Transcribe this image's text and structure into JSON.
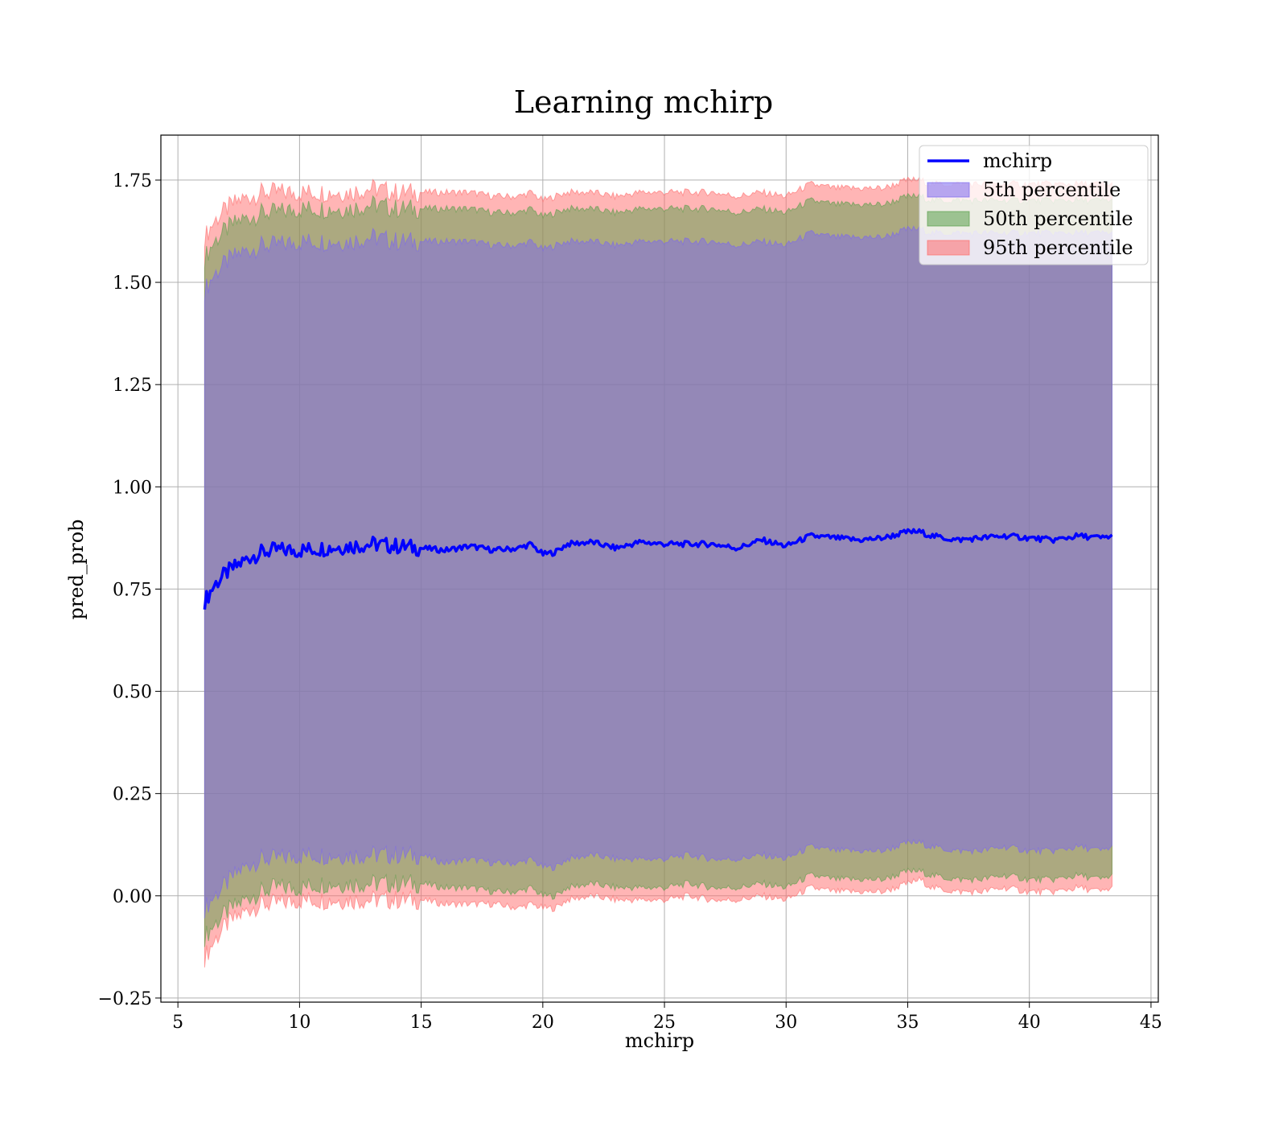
{
  "chart_data": {
    "type": "area",
    "title": "Learning mchirp",
    "xlabel": "mchirp",
    "ylabel": "pred_prob",
    "xlim": [
      4.3,
      45.3
    ],
    "ylim": [
      -0.26,
      1.86
    ],
    "xticks": [
      5,
      10,
      15,
      20,
      25,
      30,
      35,
      40,
      45
    ],
    "yticks": [
      -0.25,
      0.0,
      0.25,
      0.5,
      0.75,
      1.0,
      1.25,
      1.5,
      1.75
    ],
    "xtick_labels": [
      "5",
      "10",
      "15",
      "20",
      "25",
      "30",
      "35",
      "40",
      "45"
    ],
    "ytick_labels": [
      "−0.25",
      "0.00",
      "0.25",
      "0.50",
      "0.75",
      "1.00",
      "1.25",
      "1.50",
      "1.75"
    ],
    "grid": true,
    "legend_position": "top-right",
    "x": [
      6.1,
      6.5,
      7,
      7.5,
      8,
      8.5,
      9,
      10,
      11,
      12,
      13,
      14,
      15,
      16,
      17,
      18,
      19,
      19.5,
      20,
      20.5,
      21,
      22,
      23,
      24,
      25,
      26,
      27,
      28,
      29,
      30,
      31,
      32,
      33,
      34,
      35,
      35.5,
      36,
      37,
      38,
      39,
      40,
      41,
      42,
      43,
      43.4
    ],
    "series": [
      {
        "name": "mchirp",
        "kind": "line",
        "color": "#0000ff",
        "values": [
          0.72,
          0.76,
          0.79,
          0.81,
          0.83,
          0.84,
          0.845,
          0.845,
          0.85,
          0.855,
          0.86,
          0.855,
          0.85,
          0.845,
          0.855,
          0.845,
          0.85,
          0.86,
          0.835,
          0.84,
          0.86,
          0.865,
          0.85,
          0.865,
          0.86,
          0.86,
          0.86,
          0.85,
          0.87,
          0.855,
          0.88,
          0.875,
          0.87,
          0.875,
          0.89,
          0.89,
          0.88,
          0.87,
          0.875,
          0.88,
          0.875,
          0.87,
          0.88,
          0.875,
          0.88
        ]
      },
      {
        "name": "5th percentile",
        "kind": "band",
        "color": "#7b68ee",
        "lower": [
          -0.03,
          0.0,
          0.03,
          0.06,
          0.08,
          0.09,
          0.09,
          0.1,
          0.1,
          0.1,
          0.1,
          0.1,
          0.1,
          0.08,
          0.09,
          0.08,
          0.08,
          0.09,
          0.07,
          0.07,
          0.09,
          0.1,
          0.09,
          0.09,
          0.09,
          0.1,
          0.09,
          0.09,
          0.1,
          0.09,
          0.12,
          0.11,
          0.11,
          0.11,
          0.13,
          0.13,
          0.12,
          0.11,
          0.11,
          0.12,
          0.11,
          0.11,
          0.12,
          0.11,
          0.12
        ],
        "upper": [
          1.48,
          1.52,
          1.55,
          1.57,
          1.58,
          1.59,
          1.59,
          1.6,
          1.6,
          1.6,
          1.61,
          1.6,
          1.6,
          1.6,
          1.6,
          1.59,
          1.59,
          1.6,
          1.58,
          1.59,
          1.6,
          1.6,
          1.59,
          1.6,
          1.6,
          1.6,
          1.6,
          1.59,
          1.6,
          1.59,
          1.62,
          1.61,
          1.61,
          1.61,
          1.63,
          1.63,
          1.62,
          1.62,
          1.62,
          1.62,
          1.62,
          1.62,
          1.62,
          1.62,
          1.62
        ]
      },
      {
        "name": "50th percentile",
        "kind": "band",
        "color": "#5a9e4b",
        "lower": [
          -0.1,
          -0.07,
          -0.04,
          -0.02,
          0.0,
          0.01,
          0.02,
          0.02,
          0.03,
          0.03,
          0.03,
          0.03,
          0.03,
          0.02,
          0.02,
          0.01,
          0.01,
          0.02,
          0.0,
          0.0,
          0.02,
          0.03,
          0.02,
          0.02,
          0.02,
          0.03,
          0.02,
          0.02,
          0.03,
          0.02,
          0.05,
          0.04,
          0.04,
          0.04,
          0.06,
          0.06,
          0.05,
          0.04,
          0.04,
          0.05,
          0.04,
          0.04,
          0.05,
          0.04,
          0.05
        ],
        "upper": [
          1.56,
          1.6,
          1.63,
          1.65,
          1.66,
          1.67,
          1.67,
          1.68,
          1.68,
          1.68,
          1.69,
          1.68,
          1.68,
          1.68,
          1.68,
          1.67,
          1.67,
          1.68,
          1.66,
          1.67,
          1.68,
          1.68,
          1.67,
          1.68,
          1.68,
          1.68,
          1.68,
          1.67,
          1.68,
          1.67,
          1.7,
          1.69,
          1.69,
          1.69,
          1.71,
          1.71,
          1.7,
          1.7,
          1.7,
          1.7,
          1.7,
          1.7,
          1.7,
          1.7,
          1.7
        ]
      },
      {
        "name": "95th percentile",
        "kind": "band",
        "color": "#ff6b6b",
        "lower": [
          -0.15,
          -0.11,
          -0.07,
          -0.05,
          -0.03,
          -0.02,
          -0.02,
          -0.01,
          -0.01,
          -0.01,
          -0.01,
          -0.01,
          -0.01,
          -0.02,
          -0.02,
          -0.02,
          -0.03,
          -0.02,
          -0.03,
          -0.03,
          -0.01,
          0.0,
          -0.01,
          -0.01,
          -0.01,
          0.0,
          -0.01,
          -0.01,
          0.0,
          -0.01,
          0.02,
          0.01,
          0.01,
          0.01,
          0.03,
          0.04,
          0.02,
          0.01,
          0.01,
          0.02,
          0.01,
          0.01,
          0.02,
          0.01,
          0.02
        ],
        "upper": [
          1.61,
          1.65,
          1.68,
          1.7,
          1.71,
          1.72,
          1.72,
          1.72,
          1.72,
          1.72,
          1.73,
          1.72,
          1.72,
          1.72,
          1.72,
          1.71,
          1.71,
          1.72,
          1.7,
          1.71,
          1.72,
          1.72,
          1.71,
          1.72,
          1.72,
          1.72,
          1.72,
          1.71,
          1.72,
          1.71,
          1.74,
          1.73,
          1.73,
          1.73,
          1.75,
          1.75,
          1.74,
          1.74,
          1.74,
          1.74,
          1.74,
          1.74,
          1.74,
          1.74,
          1.74
        ]
      }
    ]
  }
}
